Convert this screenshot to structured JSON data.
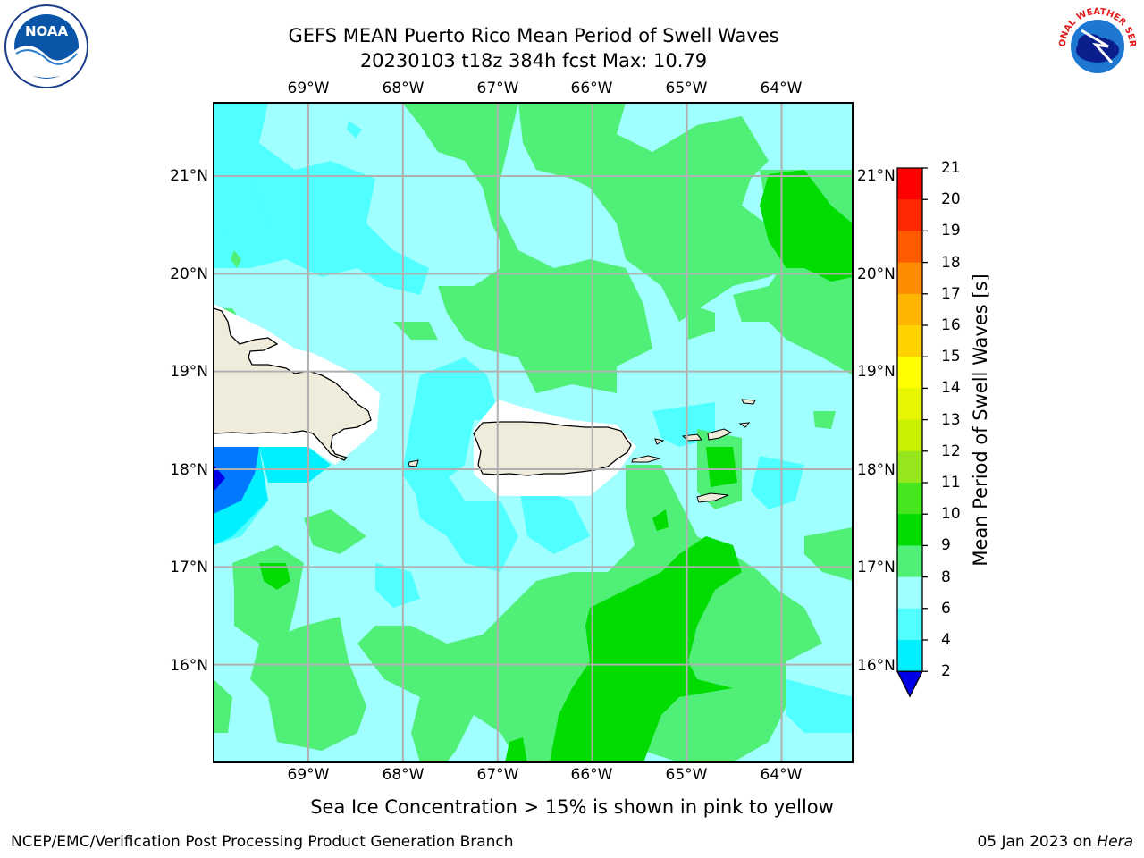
{
  "header": {
    "title_line1": "GEFS MEAN Puerto Rico Mean Period of Swell Waves",
    "title_line2": "20230103 t18z 384h fcst   Max: 10.79"
  },
  "logos": {
    "left": {
      "name": "noaa-logo",
      "text": "NOAA"
    },
    "right": {
      "name": "nws-logo",
      "text": "NATIONAL WEATHER SERVICE"
    }
  },
  "map": {
    "lon_labels": [
      "69°W",
      "68°W",
      "67°W",
      "66°W",
      "65°W",
      "64°W"
    ],
    "lat_labels": [
      "21°N",
      "20°N",
      "19°N",
      "18°N",
      "17°N",
      "16°N"
    ],
    "lon_range": [
      -70.0,
      -63.25
    ],
    "lat_range": [
      15.0,
      21.75
    ],
    "colors": {
      "land": "#efecdc",
      "coast_white": "#ffffff",
      "grid": "#b0b0b0"
    }
  },
  "colorbar": {
    "label": "Mean Period of Swell Waves [s]",
    "ticks": [
      "21",
      "20",
      "19",
      "18",
      "17",
      "16",
      "15",
      "14",
      "13",
      "12",
      "11",
      "10",
      "9",
      "8",
      "6",
      "4",
      "2"
    ],
    "colors": [
      "#ff0000",
      "#ff2800",
      "#ff5a00",
      "#ff8c00",
      "#ffb400",
      "#ffd200",
      "#ffff00",
      "#e6f500",
      "#c8f000",
      "#96e61e",
      "#46e61e",
      "#00dc00",
      "#50f078",
      "#a0ffff",
      "#50ffff",
      "#00f0ff",
      "#0078ff",
      "#0000e6"
    ]
  },
  "caption": "Sea Ice Concentration > 15% is shown in pink to yellow",
  "footer": {
    "left": "NCEP/EMC/Verification Post Processing Product Generation Branch",
    "right_date": "05 Jan 2023 on ",
    "right_host": "Hera"
  }
}
